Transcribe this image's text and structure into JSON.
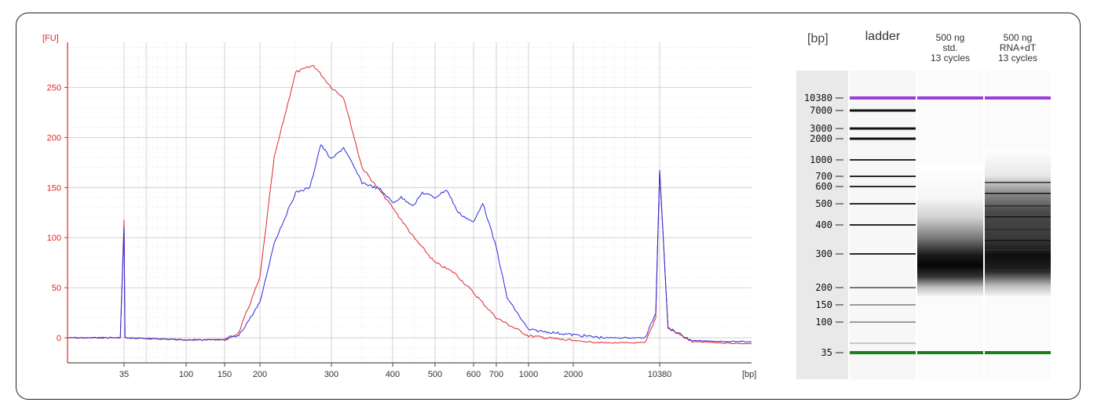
{
  "chart_data": [
    {
      "type": "line",
      "x_scale": "electropherogram (bp, non-linear)",
      "ylabel": "[FU]",
      "xlabel": "[bp]",
      "ylim": [
        -25,
        295
      ],
      "y_ticks": [
        0,
        50,
        100,
        150,
        200,
        250
      ],
      "x_tick_labels": [
        "35",
        "100",
        "150",
        "200",
        "300",
        "400",
        "500",
        "600",
        "700",
        "1000",
        "2000",
        "10380"
      ],
      "grid": true,
      "legend": "none",
      "series": [
        {
          "color": "#e0262b",
          "points": [
            [
              20,
              0
            ],
            [
              34,
              0
            ],
            [
              35,
              118
            ],
            [
              36,
              0
            ],
            [
              100,
              -2
            ],
            [
              150,
              -2
            ],
            [
              170,
              5
            ],
            [
              200,
              60
            ],
            [
              220,
              180
            ],
            [
              250,
              265
            ],
            [
              275,
              272
            ],
            [
              300,
              250
            ],
            [
              320,
              240
            ],
            [
              350,
              170
            ],
            [
              400,
              130
            ],
            [
              450,
              100
            ],
            [
              500,
              75
            ],
            [
              550,
              65
            ],
            [
              600,
              45
            ],
            [
              700,
              20
            ],
            [
              1000,
              2
            ],
            [
              2000,
              -3
            ],
            [
              5000,
              -5
            ],
            [
              9000,
              -5
            ],
            [
              10000,
              20
            ],
            [
              10380,
              168
            ],
            [
              10800,
              10
            ],
            [
              12000,
              -4
            ],
            [
              15000,
              -6
            ]
          ]
        },
        {
          "color": "#2a2ae0",
          "points": [
            [
              20,
              0
            ],
            [
              34,
              0
            ],
            [
              35,
              110
            ],
            [
              36,
              0
            ],
            [
              100,
              -2
            ],
            [
              150,
              -2
            ],
            [
              170,
              2
            ],
            [
              200,
              35
            ],
            [
              220,
              95
            ],
            [
              250,
              145
            ],
            [
              270,
              150
            ],
            [
              285,
              193
            ],
            [
              300,
              178
            ],
            [
              320,
              190
            ],
            [
              350,
              155
            ],
            [
              380,
              148
            ],
            [
              400,
              135
            ],
            [
              420,
              140
            ],
            [
              450,
              132
            ],
            [
              470,
              145
            ],
            [
              500,
              140
            ],
            [
              530,
              148
            ],
            [
              560,
              125
            ],
            [
              600,
              115
            ],
            [
              640,
              135
            ],
            [
              700,
              90
            ],
            [
              800,
              40
            ],
            [
              1000,
              8
            ],
            [
              2000,
              3
            ],
            [
              5000,
              0
            ],
            [
              9000,
              0
            ],
            [
              10000,
              25
            ],
            [
              10380,
              168
            ],
            [
              10800,
              10
            ],
            [
              12000,
              -3
            ],
            [
              15000,
              -4
            ]
          ]
        }
      ]
    },
    {
      "type": "table",
      "title": "",
      "y_unit": "[bp]",
      "lanes": [
        {
          "label": "ladder",
          "label_line2": "",
          "label_line3": ""
        },
        {
          "label": "500 ng",
          "label_line2": "std.",
          "label_line3": "13 cycles"
        },
        {
          "label": "500 ng",
          "label_line2": "RNA+dT",
          "label_line3": "13 cycles"
        }
      ],
      "ladder_bands": [
        "10380",
        "7000",
        "3000",
        "2000",
        "1000",
        "700",
        "600",
        "500",
        "400",
        "300",
        "200",
        "150",
        "100",
        "35"
      ]
    }
  ]
}
